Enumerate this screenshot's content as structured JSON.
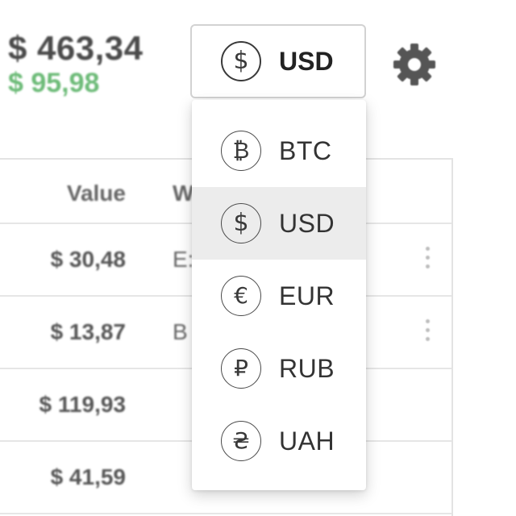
{
  "header": {
    "total_value": "$ 463,34",
    "total_change": "$ 95,98"
  },
  "currency_select": {
    "selected_label": "USD",
    "selected_symbol": "$"
  },
  "settings": {
    "icon": "gear-icon"
  },
  "table": {
    "columns": [
      "Value",
      "W"
    ],
    "rows": [
      {
        "value": "$ 30,48",
        "w": "E:"
      },
      {
        "value": "$ 13,87",
        "w": "B"
      },
      {
        "value": "$ 119,93",
        "w": ""
      },
      {
        "value": "$ 41,59",
        "w": ""
      }
    ]
  },
  "dropdown": {
    "options": [
      {
        "code": "BTC",
        "symbol": "₿",
        "icon": "bitcoin-icon"
      },
      {
        "code": "USD",
        "symbol": "$",
        "icon": "dollar-icon"
      },
      {
        "code": "EUR",
        "symbol": "€",
        "icon": "euro-icon"
      },
      {
        "code": "RUB",
        "symbol": "₽",
        "icon": "ruble-icon"
      },
      {
        "code": "UAH",
        "symbol": "₴",
        "icon": "hryvnia-icon"
      }
    ]
  },
  "colors": {
    "positive_change": "#6dbb78",
    "selected_row_bg": "#ececec",
    "text_dark": "#333333"
  }
}
